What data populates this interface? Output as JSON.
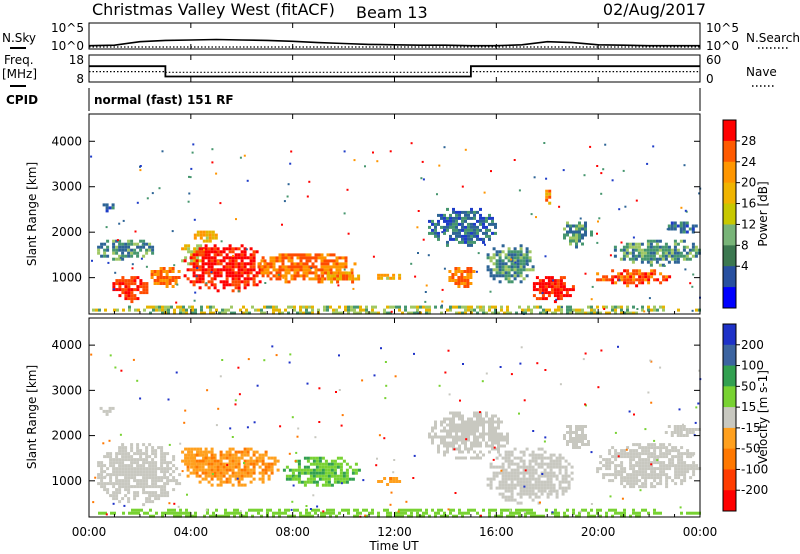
{
  "header": {
    "title": "Christmas Valley West (fitACF)",
    "beam": "Beam 13",
    "date": "02/Aug/2017"
  },
  "mode_label": "normal (fast) 151 RF",
  "left_labels": {
    "nsky": "N.Sky",
    "freq": "Freq.",
    "freq_unit": "[MHz]",
    "cpid": "CPID"
  },
  "right_labels": {
    "nsearch": "N.Search",
    "nave": "Nave"
  },
  "chart_data": [
    {
      "type": "line",
      "name": "noise",
      "y_left_ticks": [
        "10^5",
        "10^0"
      ],
      "y_right_ticks": [
        "10^5",
        "10^0"
      ],
      "x": [
        0,
        1,
        2,
        3,
        4,
        5,
        6,
        7,
        8,
        9,
        10,
        11,
        12,
        13,
        14,
        15,
        16,
        17,
        18,
        19,
        20,
        21,
        22,
        23,
        24
      ],
      "series": [
        {
          "name": "N.Sky",
          "values": [
            0.3,
            0.4,
            1.2,
            1.5,
            1.6,
            1.7,
            1.6,
            1.5,
            1.3,
            1.0,
            0.8,
            0.6,
            0.5,
            0.4,
            0.4,
            0.3,
            0.3,
            0.5,
            1.2,
            1.0,
            0.5,
            0.4,
            0.3,
            0.3,
            0.3
          ]
        }
      ]
    },
    {
      "type": "line",
      "name": "frequency",
      "y_left_ticks": [
        "18",
        "8"
      ],
      "y_right_ticks": [
        "60",
        "0"
      ],
      "x": [
        0,
        3,
        3,
        15,
        15,
        24
      ],
      "series": [
        {
          "name": "Freq.",
          "values": [
            14,
            14,
            9.5,
            9.5,
            14,
            14
          ]
        },
        {
          "name": "Nave",
          "values": [
            22,
            22,
            20,
            20,
            22,
            22
          ]
        }
      ]
    },
    {
      "type": "heatmap",
      "name": "power",
      "ylabel": "Slant Range [km]",
      "yticks": [
        1000,
        2000,
        3000,
        4000
      ],
      "ylim": [
        200,
        4600
      ],
      "colorbar_label": "Power [dB]",
      "colorbar_ticks": [
        "28",
        "24",
        "20",
        "16",
        "12",
        "8",
        "4"
      ],
      "colorbar_colors": [
        "#ff0000",
        "#ff5a00",
        "#ff9600",
        "#f0b400",
        "#c8c800",
        "#78b478",
        "#3c7850",
        "#2850a0",
        "#0000ff"
      ],
      "blobs": [
        {
          "t0": 0.3,
          "t1": 1.0,
          "r0": 2500,
          "r1": 2700,
          "v": 8
        },
        {
          "t0": 0.2,
          "t1": 2.5,
          "r0": 1400,
          "r1": 1900,
          "v": 10
        },
        {
          "t0": 0.8,
          "t1": 2.3,
          "r0": 500,
          "r1": 1100,
          "v": 26
        },
        {
          "t0": 2.3,
          "t1": 3.6,
          "r0": 800,
          "r1": 1300,
          "v": 22
        },
        {
          "t0": 3.5,
          "t1": 4.6,
          "r0": 1300,
          "r1": 1800,
          "v": 16
        },
        {
          "t0": 3.6,
          "t1": 7.0,
          "r0": 700,
          "r1": 1800,
          "v": 27
        },
        {
          "t0": 4.0,
          "t1": 5.0,
          "r0": 1800,
          "r1": 2100,
          "v": 18
        },
        {
          "t0": 6.5,
          "t1": 10.5,
          "r0": 900,
          "r1": 1600,
          "v": 22
        },
        {
          "t0": 9.0,
          "t1": 10.8,
          "r0": 900,
          "r1": 1200,
          "v": 20
        },
        {
          "t0": 11.2,
          "t1": 12.2,
          "r0": 950,
          "r1": 1150,
          "v": 17
        },
        {
          "t0": 13.2,
          "t1": 16.0,
          "r0": 1700,
          "r1": 2600,
          "v": 8
        },
        {
          "t0": 14.0,
          "t1": 15.2,
          "r0": 800,
          "r1": 1300,
          "v": 22
        },
        {
          "t0": 15.5,
          "t1": 17.5,
          "r0": 900,
          "r1": 1800,
          "v": 10
        },
        {
          "t0": 17.2,
          "t1": 19.0,
          "r0": 500,
          "r1": 1100,
          "v": 27
        },
        {
          "t0": 17.8,
          "t1": 18.1,
          "r0": 2600,
          "r1": 3000,
          "v": 20
        },
        {
          "t0": 18.5,
          "t1": 19.7,
          "r0": 1700,
          "r1": 2300,
          "v": 10
        },
        {
          "t0": 19.8,
          "t1": 22.8,
          "r0": 850,
          "r1": 1250,
          "v": 24
        },
        {
          "t0": 20.5,
          "t1": 24.0,
          "r0": 1300,
          "r1": 1900,
          "v": 10
        },
        {
          "t0": 22.5,
          "t1": 24.0,
          "r0": 2000,
          "r1": 2300,
          "v": 8
        },
        {
          "t0": 0.0,
          "t1": 24.0,
          "r0": 200,
          "r1": 450,
          "v": 14
        }
      ]
    },
    {
      "type": "heatmap",
      "name": "velocity",
      "ylabel": "Slant Range [km]",
      "yticks": [
        1000,
        2000,
        3000,
        4000
      ],
      "ylim": [
        200,
        4600
      ],
      "colorbar_label": "Velocity [m s-1]",
      "colorbar_ticks": [
        "200",
        "100",
        "50",
        "15",
        "-15",
        "-50",
        "-100",
        "-200"
      ],
      "colorbar_colors": [
        "#1e32c8",
        "#3c64a0",
        "#32a050",
        "#78d232",
        "#c8c8c0",
        "#ffa01e",
        "#ff7800",
        "#ff3c00",
        "#ff0000"
      ],
      "blobs": [
        {
          "t0": 0.3,
          "t1": 1.0,
          "r0": 2500,
          "r1": 2700,
          "v": 0
        },
        {
          "t0": 0.2,
          "t1": 3.6,
          "r0": 500,
          "r1": 1900,
          "v": 0
        },
        {
          "t0": 3.5,
          "t1": 4.6,
          "r0": 1300,
          "r1": 1800,
          "v": -20
        },
        {
          "t0": 3.6,
          "t1": 7.5,
          "r0": 900,
          "r1": 1800,
          "v": -30
        },
        {
          "t0": 7.5,
          "t1": 10.6,
          "r0": 900,
          "r1": 1600,
          "v": 30
        },
        {
          "t0": 11.2,
          "t1": 12.2,
          "r0": 950,
          "r1": 1150,
          "v": -30
        },
        {
          "t0": 13.2,
          "t1": 16.5,
          "r0": 1500,
          "r1": 2600,
          "v": 0
        },
        {
          "t0": 15.5,
          "t1": 19.0,
          "r0": 500,
          "r1": 1800,
          "v": 0
        },
        {
          "t0": 18.5,
          "t1": 19.7,
          "r0": 1700,
          "r1": 2300,
          "v": 0
        },
        {
          "t0": 19.8,
          "t1": 24.0,
          "r0": 850,
          "r1": 1900,
          "v": 0
        },
        {
          "t0": 22.5,
          "t1": 24.0,
          "r0": 2000,
          "r1": 2300,
          "v": 0
        },
        {
          "t0": 0.0,
          "t1": 24.0,
          "r0": 200,
          "r1": 450,
          "v": 25
        }
      ]
    }
  ],
  "x_axis": {
    "ticks": [
      "00:00",
      "04:00",
      "08:00",
      "12:00",
      "16:00",
      "20:00",
      "00:00"
    ],
    "label": "Time UT"
  }
}
